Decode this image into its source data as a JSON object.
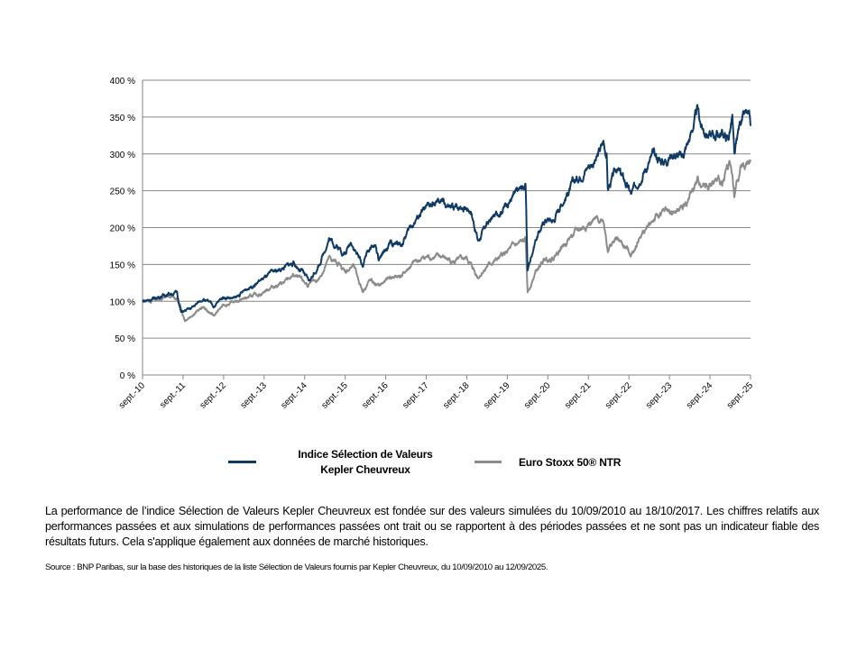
{
  "chart_data": {
    "type": "line",
    "title": "",
    "xlabel": "",
    "ylabel": "",
    "x_units": "years since sept. 2010",
    "xlim": [
      0,
      15
    ],
    "ylim": [
      0,
      400
    ],
    "y_ticks": [
      0,
      50,
      100,
      150,
      200,
      250,
      300,
      350,
      400
    ],
    "y_tick_labels": [
      "0 %",
      "50 %",
      "100 %",
      "150 %",
      "200 %",
      "250 %",
      "300 %",
      "350 %",
      "400 %"
    ],
    "x_tick_labels": [
      "sept.-10",
      "sept.-11",
      "sept.-12",
      "sept.-13",
      "sept.-14",
      "sept.-15",
      "sept.-16",
      "sept.-17",
      "sept.-18",
      "sept.-19",
      "sept.-20",
      "sept.-21",
      "sept.-22",
      "sept.-23",
      "sept.-24",
      "sept.-25"
    ],
    "grid": "horizontal",
    "legend_position": "bottom",
    "series": [
      {
        "name": "Indice Sélection de Valeurs Kepler Cheuvreux",
        "name_line1": "Indice Sélection de Valeurs",
        "name_line2": "Kepler Cheuvreux",
        "color": "#0e3a64",
        "points": [
          [
            0,
            100
          ],
          [
            0.3,
            104
          ],
          [
            0.6,
            110
          ],
          [
            0.85,
            112
          ],
          [
            0.95,
            85
          ],
          [
            1.2,
            90
          ],
          [
            1.5,
            104
          ],
          [
            1.75,
            93
          ],
          [
            2.0,
            106
          ],
          [
            2.3,
            104
          ],
          [
            2.6,
            118
          ],
          [
            2.9,
            128
          ],
          [
            3.2,
            138
          ],
          [
            3.5,
            146
          ],
          [
            3.72,
            152
          ],
          [
            3.95,
            140
          ],
          [
            4.1,
            126
          ],
          [
            4.35,
            148
          ],
          [
            4.6,
            185
          ],
          [
            4.85,
            172
          ],
          [
            5.0,
            165
          ],
          [
            5.15,
            182
          ],
          [
            5.43,
            148
          ],
          [
            5.55,
            170
          ],
          [
            5.75,
            176
          ],
          [
            5.83,
            154
          ],
          [
            6.1,
            178
          ],
          [
            6.4,
            178
          ],
          [
            6.6,
            200
          ],
          [
            6.9,
            222
          ],
          [
            7.1,
            228
          ],
          [
            7.39,
            235
          ],
          [
            7.6,
            225
          ],
          [
            7.9,
            230
          ],
          [
            8.1,
            225
          ],
          [
            8.28,
            182
          ],
          [
            8.5,
            205
          ],
          [
            8.8,
            222
          ],
          [
            9.1,
            240
          ],
          [
            9.45,
            258
          ],
          [
            9.5,
            142
          ],
          [
            9.7,
            185
          ],
          [
            9.95,
            212
          ],
          [
            10.15,
            210
          ],
          [
            10.25,
            225
          ],
          [
            10.6,
            258
          ],
          [
            11.0,
            285
          ],
          [
            11.2,
            292
          ],
          [
            11.37,
            316
          ],
          [
            11.45,
            300
          ],
          [
            11.48,
            252
          ],
          [
            11.7,
            280
          ],
          [
            11.9,
            262
          ],
          [
            12.06,
            244
          ],
          [
            12.3,
            272
          ],
          [
            12.6,
            298
          ],
          [
            12.85,
            290
          ],
          [
            13.1,
            302
          ],
          [
            13.3,
            294
          ],
          [
            13.5,
            322
          ],
          [
            13.69,
            358
          ],
          [
            13.8,
            335
          ],
          [
            14.0,
            325
          ],
          [
            14.3,
            328
          ],
          [
            14.45,
            320
          ],
          [
            14.55,
            350
          ],
          [
            14.6,
            292
          ],
          [
            14.75,
            345
          ],
          [
            14.9,
            352
          ],
          [
            15.0,
            338
          ]
        ]
      },
      {
        "name": "Euro Stoxx 50® NTR",
        "color": "#8c8c8c",
        "points": [
          [
            0,
            100
          ],
          [
            0.3,
            102
          ],
          [
            0.6,
            106
          ],
          [
            0.85,
            104
          ],
          [
            1.05,
            75
          ],
          [
            1.3,
            85
          ],
          [
            1.5,
            92
          ],
          [
            1.75,
            80
          ],
          [
            2.0,
            95
          ],
          [
            2.3,
            100
          ],
          [
            2.6,
            105
          ],
          [
            2.9,
            110
          ],
          [
            3.2,
            120
          ],
          [
            3.5,
            125
          ],
          [
            3.72,
            135
          ],
          [
            4.1,
            122
          ],
          [
            4.35,
            130
          ],
          [
            4.6,
            158
          ],
          [
            4.85,
            150
          ],
          [
            5.0,
            140
          ],
          [
            5.2,
            148
          ],
          [
            5.43,
            114
          ],
          [
            5.6,
            128
          ],
          [
            5.83,
            120
          ],
          [
            6.1,
            132
          ],
          [
            6.4,
            135
          ],
          [
            6.7,
            152
          ],
          [
            7.0,
            160
          ],
          [
            7.4,
            160
          ],
          [
            7.7,
            153
          ],
          [
            8.0,
            158
          ],
          [
            8.28,
            133
          ],
          [
            8.5,
            148
          ],
          [
            8.8,
            158
          ],
          [
            9.1,
            172
          ],
          [
            9.45,
            182
          ],
          [
            9.5,
            111
          ],
          [
            9.7,
            140
          ],
          [
            9.95,
            158
          ],
          [
            10.15,
            160
          ],
          [
            10.25,
            168
          ],
          [
            10.6,
            190
          ],
          [
            11.0,
            205
          ],
          [
            11.37,
            212
          ],
          [
            11.48,
            172
          ],
          [
            11.7,
            185
          ],
          [
            12.06,
            164
          ],
          [
            12.3,
            190
          ],
          [
            12.6,
            210
          ],
          [
            12.9,
            222
          ],
          [
            13.2,
            220
          ],
          [
            13.4,
            232
          ],
          [
            13.7,
            262
          ],
          [
            14.0,
            258
          ],
          [
            14.3,
            262
          ],
          [
            14.5,
            290
          ],
          [
            14.6,
            243
          ],
          [
            14.75,
            282
          ],
          [
            15.0,
            289
          ]
        ]
      }
    ]
  },
  "disclaimer": "La performance de l’indice Sélection de Valeurs Kepler Cheuvreux est fondée sur des valeurs simulées du 10/09/2010 au 18/10/2017. Les chiffres relatifs aux performances passées et aux simulations de performances passées ont trait ou se rapportent à des périodes passées et ne sont pas un indicateur fiable des résultats futurs. Cela s'applique également aux données de marché historiques.",
  "source": "Source : BNP Paribas, sur la base des historiques de la liste Sélection de Valeurs fournis par Kepler Cheuvreux, du 10/09/2010 au 12/09/2025."
}
